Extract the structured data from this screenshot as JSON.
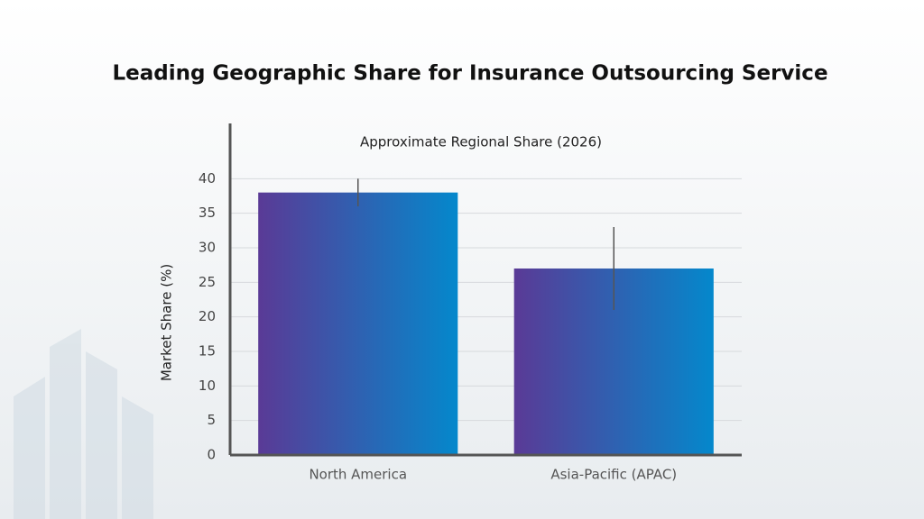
{
  "chart_data": {
    "type": "bar",
    "title": "Leading Geographic Share for Insurance Outsourcing Service",
    "subtitle": "Approximate Regional Share (2026)",
    "y_label": "Market Share (%)",
    "categories": [
      "North America",
      "Asia-Pacific (APAC)"
    ],
    "values": [
      38,
      27
    ],
    "errors": [
      2,
      6
    ],
    "colors": [
      "#5a3a96",
      "#0488cc"
    ],
    "ylim": [
      0,
      48
    ],
    "yticks": [
      0,
      5,
      10,
      15,
      20,
      25,
      30,
      35,
      40
    ],
    "grid": true
  }
}
